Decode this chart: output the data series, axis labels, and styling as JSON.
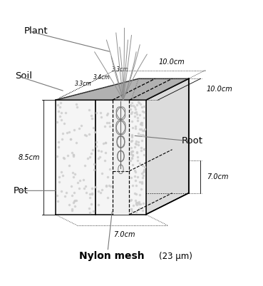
{
  "labels": {
    "plant": "Plant",
    "soil": "Soil",
    "root": "Root",
    "pot": "Pot",
    "nylon_mesh": "Nylon mesh",
    "nylon_mesh_sub": "(23 μm)",
    "dim_top": "10.0cm",
    "dim_top_left": "3.3cm",
    "dim_top_mid": "3.4cm",
    "dim_top_right": "3.3cm",
    "dim_side_top": "10.0cm",
    "dim_side_mid": "8.5cm",
    "dim_side_bot_right": "7.0cm",
    "dim_bot": "7.0cm"
  },
  "colors": {
    "background": "#ffffff",
    "pot_front": "#f8f8f8",
    "pot_right": "#e0e0e0",
    "pot_edge": "#000000",
    "soil_top": "#a0a0a0",
    "root_zone_fill": "#f0f0f0",
    "dim_line": "#000000",
    "text": "#000000",
    "leader": "#777777",
    "grass": "#888888"
  },
  "figsize": [
    3.69,
    4.01
  ],
  "dpi": 100
}
